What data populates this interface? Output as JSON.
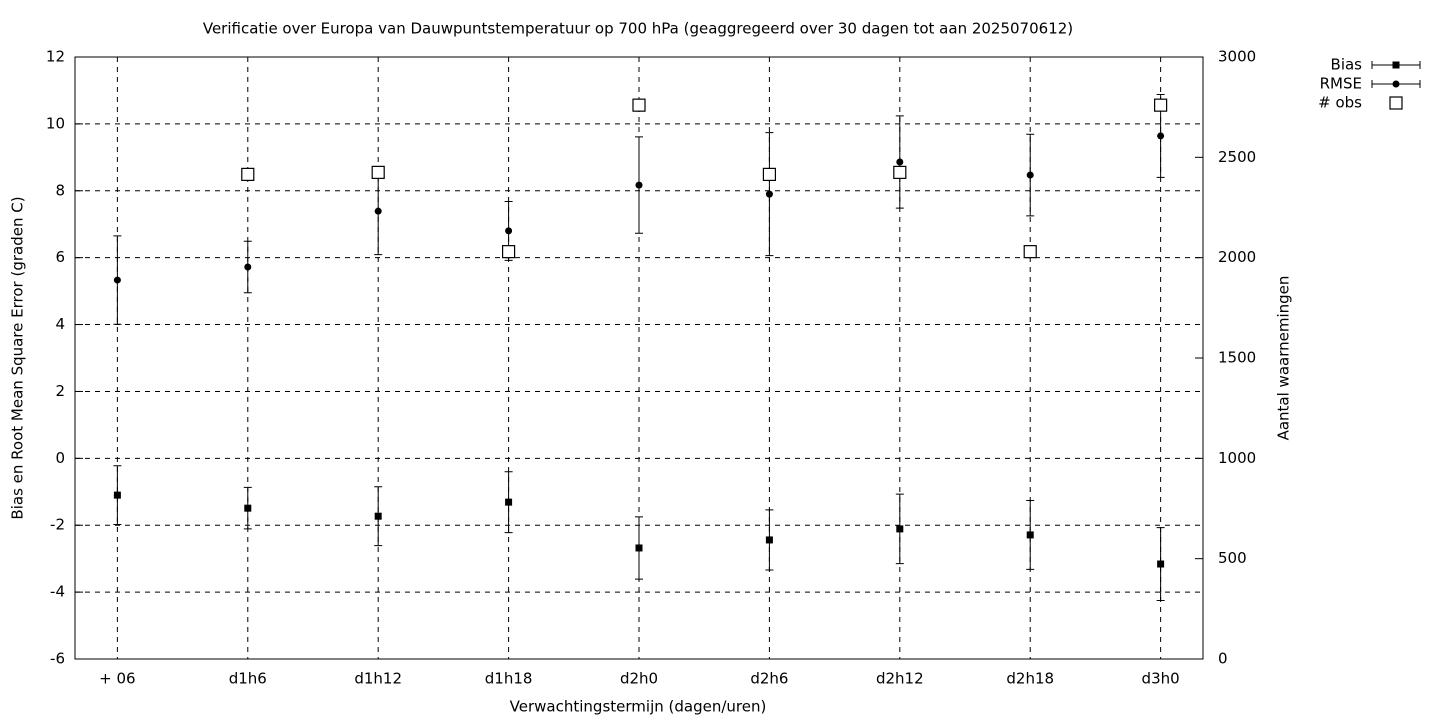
{
  "chart_data": {
    "type": "errorbar",
    "title": "Verificatie over Europa van Dauwpuntstemperatuur op 700 hPa (geaggregeerd over 30 dagen tot aan 2025070612)",
    "x_label": "Verwachtingstermijn (dagen/uren)",
    "y_label": "Bias en Root Mean Square Error (graden C)",
    "y2_label": "Aantal waarnemingen",
    "categories": [
      "+ 06",
      "d1h6",
      "d1h12",
      "d1h18",
      "d2h0",
      "d2h6",
      "d2h12",
      "d2h18",
      "d3h0"
    ],
    "series": [
      {
        "name": "Bias",
        "color": "#000000",
        "marker": "square",
        "values": [
          -1.1,
          -1.49,
          -1.73,
          -1.31,
          -2.68,
          -2.44,
          -2.11,
          -2.29,
          -3.16
        ],
        "errors": [
          0.88,
          0.62,
          0.88,
          0.91,
          0.93,
          0.9,
          1.04,
          1.03,
          1.09
        ]
      },
      {
        "name": "RMSE",
        "color": "#000000",
        "marker": "circle",
        "values": [
          5.33,
          5.72,
          7.39,
          6.8,
          8.17,
          7.9,
          8.86,
          8.47,
          9.64
        ],
        "errors": [
          1.32,
          0.77,
          1.3,
          0.88,
          1.44,
          1.84,
          1.38,
          1.22,
          1.24
        ]
      },
      {
        "name": "# obs",
        "color": "#000000",
        "marker": "open-square",
        "axis": "y2",
        "values": [
          null,
          2415,
          2425,
          2030,
          2760,
          2415,
          2425,
          2030,
          2760
        ]
      }
    ],
    "ylim": [
      -6,
      12
    ],
    "yticks": [
      -6,
      -4,
      -2,
      0,
      2,
      4,
      6,
      8,
      10,
      12
    ],
    "y2lim": [
      0,
      3000
    ],
    "y2ticks": [
      0,
      500,
      1000,
      1500,
      2000,
      2500,
      3000
    ],
    "grid": true,
    "legend": "top-right"
  }
}
